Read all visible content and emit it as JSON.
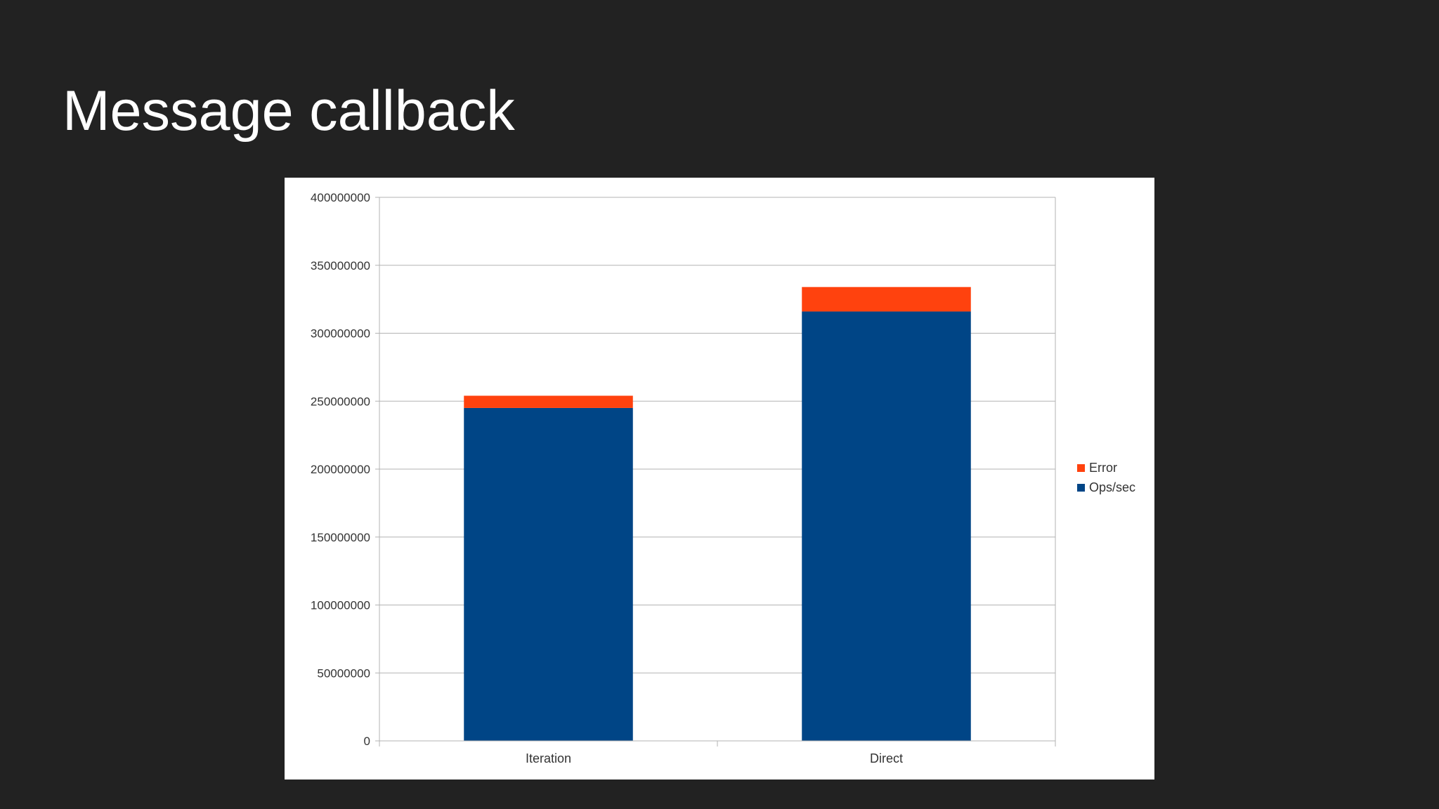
{
  "slide": {
    "title": "Message callback"
  },
  "chart_data": {
    "type": "bar",
    "stacked": true,
    "title": "",
    "xlabel": "",
    "ylabel": "",
    "categories": [
      "Iteration",
      "Direct"
    ],
    "series": [
      {
        "name": "Ops/sec",
        "values": [
          245000000,
          316000000
        ],
        "color": "#004586"
      },
      {
        "name": "Error",
        "values": [
          9000000,
          18000000
        ],
        "color": "#ff420e"
      }
    ],
    "ylim": [
      0,
      400000000
    ],
    "yticks": [
      "0",
      "50000000",
      "100000000",
      "150000000",
      "200000000",
      "250000000",
      "300000000",
      "350000000",
      "400000000"
    ],
    "grid": true,
    "legend_position": "right"
  }
}
